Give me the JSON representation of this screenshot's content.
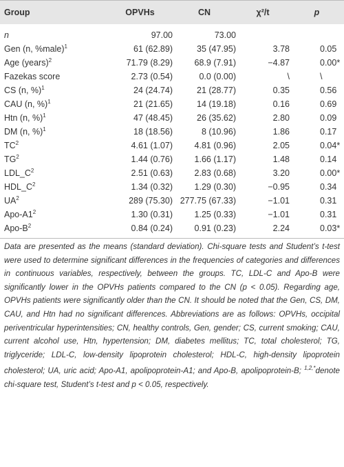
{
  "table": {
    "header": [
      "Group",
      "OPVHs",
      "CN",
      "χ²/t",
      "p"
    ],
    "rows": [
      {
        "label": "n",
        "sup": null,
        "cells": [
          "97.00",
          "73.00",
          "",
          ""
        ]
      },
      {
        "label": "Gen (n, %male)",
        "sup": "1",
        "cells": [
          "61 (62.89)",
          "35 (47.95)",
          "3.78",
          "0.05"
        ]
      },
      {
        "label": "Age (years)",
        "sup": "2",
        "cells": [
          "71.79 (8.29)",
          "68.9 (7.91)",
          "−4.87",
          "0.00*"
        ]
      },
      {
        "label": "Fazekas score",
        "sup": null,
        "cells": [
          "2.73 (0.54)",
          "0.0 (0.00)",
          "\\",
          "\\"
        ]
      },
      {
        "label": "CS (n, %)",
        "sup": "1",
        "cells": [
          "24 (24.74)",
          "21 (28.77)",
          "0.35",
          "0.56"
        ]
      },
      {
        "label": "CAU (n, %)",
        "sup": "1",
        "cells": [
          "21 (21.65)",
          "14 (19.18)",
          "0.16",
          "0.69"
        ]
      },
      {
        "label": "Htn (n, %)",
        "sup": "1",
        "cells": [
          "47 (48.45)",
          "26 (35.62)",
          "2.80",
          "0.09"
        ]
      },
      {
        "label": "DM (n, %)",
        "sup": "1",
        "cells": [
          "18 (18.56)",
          "8 (10.96)",
          "1.86",
          "0.17"
        ]
      },
      {
        "label": "TC",
        "sup": "2",
        "cells": [
          "4.61 (1.07)",
          "4.81 (0.96)",
          "2.05",
          "0.04*"
        ]
      },
      {
        "label": "TG",
        "sup": "2",
        "cells": [
          "1.44 (0.76)",
          "1.66 (1.17)",
          "1.48",
          "0.14"
        ]
      },
      {
        "label": "LDL_C",
        "sup": "2",
        "cells": [
          "2.51 (0.63)",
          "2.83 (0.68)",
          "3.20",
          "0.00*"
        ]
      },
      {
        "label": "HDL_C",
        "sup": "2",
        "cells": [
          "1.34 (0.32)",
          "1.29 (0.30)",
          "−0.95",
          "0.34"
        ]
      },
      {
        "label": "UA",
        "sup": "2",
        "cells": [
          "289 (75.30)",
          "277.75 (67.33)",
          "−1.01",
          "0.31"
        ]
      },
      {
        "label": "Apo-A1",
        "sup": "2",
        "cells": [
          "1.30 (0.31)",
          "1.25 (0.33)",
          "−1.01",
          "0.31"
        ]
      },
      {
        "label": "Apo-B",
        "sup": "2",
        "cells": [
          "0.84 (0.24)",
          "0.91 (0.23)",
          "2.24",
          "0.03*"
        ]
      }
    ]
  },
  "note": {
    "text1": "Data are presented as the means (standard deviation). Chi-square tests and Student’s t-test were used to determine significant differences in the frequencies of categories and differences in continuous variables, respectively, between the groups. TC, LDL-C and Apo-B were significantly lower in the OPVHs patients compared to the CN (p < 0.05). Regarding age, OPVHs patients were significantly older than the CN. It should be noted that the Gen, CS, DM, CAU, and Htn had no significant differences. Abbreviations are as follows: OPVHs, occipital periventricular hyperintensities; CN, healthy controls, Gen, gender; CS, current smoking; CAU, current alcohol use, Htn, hypertension; DM, diabetes mellitus; TC, total cholesterol; TG, triglyceride; LDL-C, low-density lipoprotein cholesterol; HDL-C, high-density lipoprotein cholesterol; UA, uric acid; Apo-A1, apolipoprotein-A1; and Apo-B, apolipoprotein-B; ",
    "sup": "1,2,*",
    "text2": "denote chi-square test, Student’s t-test and p < 0.05, respectively."
  }
}
